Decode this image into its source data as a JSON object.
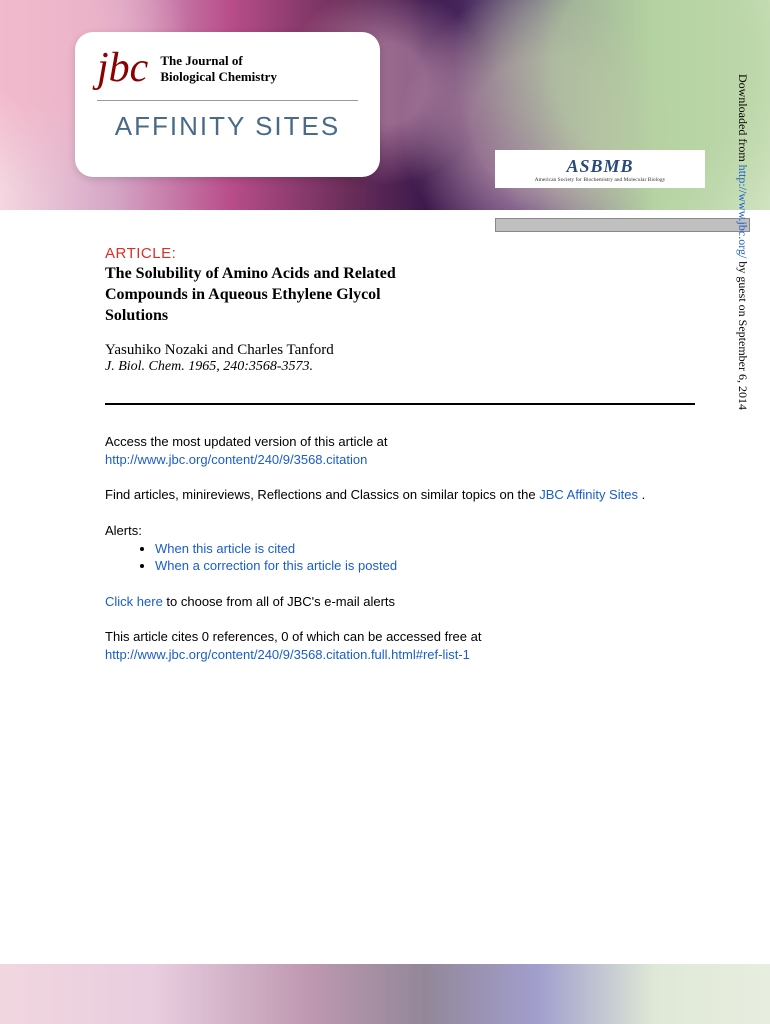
{
  "header": {
    "jbc_script": "jbc",
    "journal_title_line1": "The Journal of",
    "journal_title_line2": "Biological Chemistry",
    "affinity": "AFFINITY SITES",
    "asbmb": "ASBMB",
    "asbmb_sub": "American Society for Biochemistry and Molecular Biology"
  },
  "article": {
    "label": "ARTICLE:",
    "title": "The Solubility of Amino Acids and Related Compounds in Aqueous Ethylene Glycol Solutions",
    "authors": "Yasuhiko Nozaki and Charles Tanford",
    "citation": "J. Biol. Chem. 1965, 240:3568-3573."
  },
  "body": {
    "access_text": "Access the most updated version of this article at",
    "access_link": "http://www.jbc.org/content/240/9/3568.citation",
    "find_text_pre": "Find articles, minireviews, Reflections and Classics on similar topics on the ",
    "find_link": "JBC Affinity Sites",
    "find_text_post": " .",
    "alerts_label": "Alerts:",
    "alert_cited": "When this article is cited",
    "alert_correction": "When a correction for this article is posted",
    "click_here": "Click here",
    "click_here_rest": " to choose from all of JBC's e-mail alerts",
    "cites_text": "This article cites 0 references, 0 of which can be accessed free at",
    "cites_link": "http://www.jbc.org/content/240/9/3568.citation.full.html#ref-list-1"
  },
  "sidebar": {
    "downloaded_pre": "Downloaded from ",
    "downloaded_link": "http://www.jbc.org/",
    "downloaded_post": " by guest on September 6, 2014"
  },
  "colors": {
    "article_label": "#d93025",
    "link": "#1a5dcc",
    "affinity": "#4a6a8a",
    "jbc_red": "#8b0000"
  }
}
